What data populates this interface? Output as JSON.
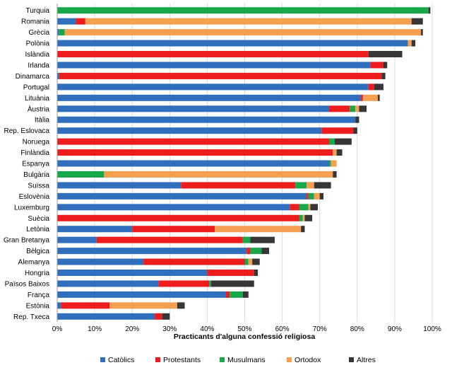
{
  "chart_data": {
    "type": "bar",
    "orientation": "horizontal",
    "stacked": true,
    "xlabel": "Practicants d'alguna confessió religiosa",
    "xlim": [
      0,
      100
    ],
    "x_ticks": [
      "0%",
      "10%",
      "20%",
      "30%",
      "40%",
      "50%",
      "60%",
      "70%",
      "80%",
      "90%",
      "100%"
    ],
    "grid": "vertical",
    "legend_position": "bottom",
    "categories": [
      "Turquia",
      "Romania",
      "Grècia",
      "Polònia",
      "Islàndia",
      "Irlanda",
      "Dinamarca",
      "Portugal",
      "Lituània",
      "Àustria",
      "Itàlia",
      "Rep. Eslovaca",
      "Noruega",
      "Finlàndia",
      "Espanya",
      "Bulgària",
      "Suïssa",
      "Eslovènia",
      "Luxemburg",
      "Suècia",
      "Letònia",
      "Gran Bretanya",
      "Bèlgica",
      "Alemanya",
      "Hongria",
      "Països Baixos",
      "França",
      "Estònia",
      "Rep. Txeca"
    ],
    "series": [
      {
        "name": "Catòlics",
        "color": "#2f6fbd",
        "values": [
          0,
          5,
          0.5,
          93.5,
          0,
          83.5,
          0.5,
          83,
          81,
          72.5,
          79.5,
          70.5,
          0,
          0,
          72.5,
          0,
          33,
          66.5,
          62,
          0,
          20,
          10.5,
          50.5,
          23,
          40,
          27,
          45,
          1,
          26
        ]
      },
      {
        "name": "Protestants",
        "color": "#ee1c1c",
        "values": [
          0,
          2.5,
          0,
          0,
          83,
          3.5,
          86,
          1.5,
          0.5,
          5.5,
          0,
          8.5,
          72.5,
          73.5,
          0,
          0,
          30.5,
          0.5,
          2.5,
          64.5,
          22,
          39,
          1,
          27,
          12.5,
          13.5,
          1,
          13,
          2
        ]
      },
      {
        "name": "Musulmans",
        "color": "#18a84a",
        "values": [
          99,
          0,
          1.5,
          0,
          0,
          0,
          0,
          0,
          0,
          1.5,
          0,
          0,
          1.5,
          0,
          0.5,
          12.5,
          3,
          1.5,
          2.5,
          1,
          0,
          2,
          3,
          1,
          0,
          0.5,
          3.5,
          0,
          0
        ]
      },
      {
        "name": "Ortodox",
        "color": "#f5a050",
        "values": [
          0,
          87,
          95,
          1,
          0,
          0,
          0,
          0,
          4,
          1,
          0,
          0,
          0,
          1,
          1.5,
          61,
          2,
          1.5,
          0.5,
          0.5,
          23,
          0,
          0,
          1,
          0,
          0,
          0,
          18,
          0
        ]
      },
      {
        "name": "Altres",
        "color": "#363636",
        "values": [
          0.5,
          3,
          0.5,
          1,
          9,
          1,
          1,
          2.5,
          0.5,
          2,
          1,
          1,
          4.5,
          1.5,
          0,
          1,
          4.5,
          1,
          2,
          2,
          1,
          6.5,
          2,
          2,
          1,
          11.5,
          1.5,
          2,
          2
        ]
      }
    ]
  }
}
